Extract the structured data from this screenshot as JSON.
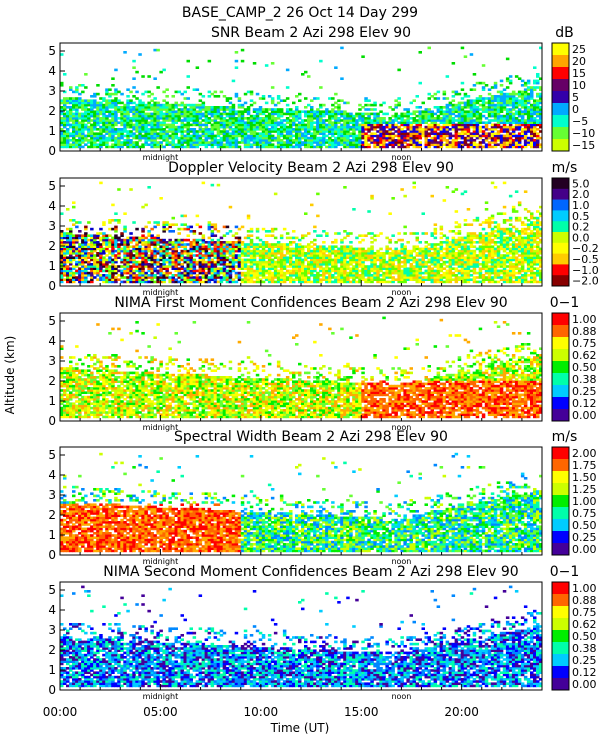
{
  "title": "BASE_CAMP_2  26 Oct 14 Day 299",
  "xlabel": "Time (UT)",
  "ylabel": "Altitude (km)",
  "x_ticks": [
    "00:00",
    "05:00",
    "10:00",
    "15:00",
    "20:00"
  ],
  "xlim": [
    0,
    24
  ],
  "ylim": [
    0,
    5.4
  ],
  "y_ticks": [
    "0",
    "1",
    "2",
    "3",
    "4",
    "5"
  ],
  "markers": [
    {
      "label": "midnight",
      "x": 5
    },
    {
      "label": "noon",
      "x": 17
    }
  ],
  "chart_data": [
    {
      "type": "heatmap",
      "title": "SNR Beam 2 Azi 298 Elev 90",
      "unit": "dB",
      "colorbar_labels": [
        "25",
        "20",
        "15",
        "10",
        "5",
        "0",
        "−5",
        "−10",
        "−15"
      ],
      "colors": [
        "#ffff00",
        "#ffd700",
        "#ffa500",
        "#ff0000",
        "#8b0000",
        "#660066",
        "#3300aa",
        "#0000ff",
        "#00aaff",
        "#00ffcc",
        "#00dd00",
        "#66ff33",
        "#ccff00"
      ]
    },
    {
      "type": "heatmap",
      "title": "Doppler Velocity Beam 2 Azi 298 Elev 90",
      "unit": "m/s",
      "colorbar_labels": [
        "5.0",
        "2.0",
        "1.0",
        "0.5",
        "0.2",
        "0.0",
        "−0.2",
        "−0.5",
        "−1.0",
        "−2.0"
      ],
      "colors": [
        "#220022",
        "#440088",
        "#0000cc",
        "#0066ff",
        "#00ccff",
        "#00ffaa",
        "#66ff00",
        "#ccff00",
        "#ffff00",
        "#ffcc00",
        "#ff6600",
        "#ff0000",
        "#880000"
      ]
    },
    {
      "type": "heatmap",
      "title": "NIMA First Moment Confidences Beam 2 Azi 298 Elev 90",
      "unit": "0−1",
      "colorbar_labels": [
        "1.00",
        "0.88",
        "0.75",
        "0.62",
        "0.50",
        "0.38",
        "0.25",
        "0.12",
        "0.00"
      ],
      "colors": [
        "#ff0000",
        "#ff6600",
        "#ffaa00",
        "#ffff00",
        "#ccff00",
        "#66ff33",
        "#00ee00",
        "#00ffaa",
        "#00ccff",
        "#0088ff",
        "#0000ff",
        "#440099"
      ]
    },
    {
      "type": "heatmap",
      "title": "Spectral Width Beam 2 Azi 298 Elev 90",
      "unit": "m/s",
      "colorbar_labels": [
        "2.00",
        "1.75",
        "1.50",
        "1.25",
        "1.00",
        "0.75",
        "0.50",
        "0.25",
        "0.00"
      ],
      "colors": [
        "#ff0000",
        "#ff6600",
        "#ffaa00",
        "#ffff00",
        "#ccff00",
        "#66ff33",
        "#00ee00",
        "#00ffaa",
        "#00ccff",
        "#0088ff",
        "#0000ff",
        "#440099"
      ]
    },
    {
      "type": "heatmap",
      "title": "NIMA Second Moment Confidences Beam 2 Azi 298 Elev 90",
      "unit": "0−1",
      "colorbar_labels": [
        "1.00",
        "0.88",
        "0.75",
        "0.62",
        "0.50",
        "0.38",
        "0.25",
        "0.12",
        "0.00"
      ],
      "colors": [
        "#ff0000",
        "#ff6600",
        "#ffaa00",
        "#ffff00",
        "#ccff00",
        "#66ff33",
        "#00ee00",
        "#00ffaa",
        "#00ccff",
        "#0088ff",
        "#0000ff",
        "#440099"
      ]
    }
  ]
}
